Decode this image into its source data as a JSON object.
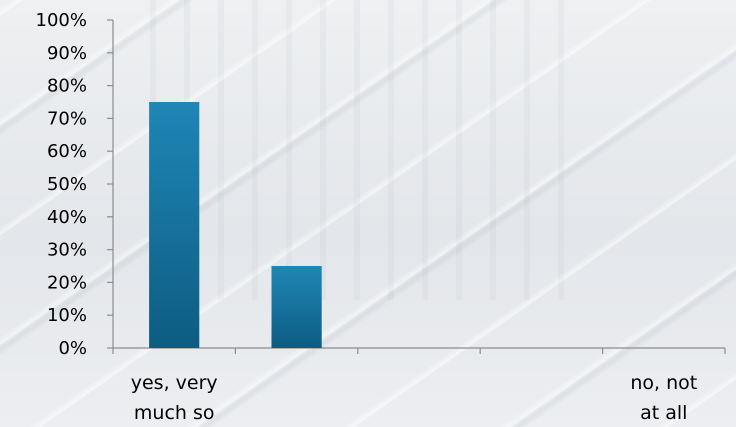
{
  "chart_data": {
    "type": "bar",
    "categories": [
      "yes, very much so",
      "",
      "",
      "",
      "no, not at all"
    ],
    "category_lines": [
      [
        "yes, very",
        "much so"
      ],
      [],
      [],
      [],
      [
        "no, not",
        "at all"
      ]
    ],
    "values": [
      75,
      25,
      0,
      0,
      0
    ],
    "ylim": [
      0,
      100
    ],
    "yticks": [
      "0%",
      "10%",
      "20%",
      "30%",
      "40%",
      "50%",
      "60%",
      "70%",
      "80%",
      "90%",
      "100%"
    ],
    "grid": false,
    "colors": {
      "bar_top": "#1f86b6",
      "bar_bottom": "#0d5c82",
      "axis": "#8c8c8c"
    }
  }
}
